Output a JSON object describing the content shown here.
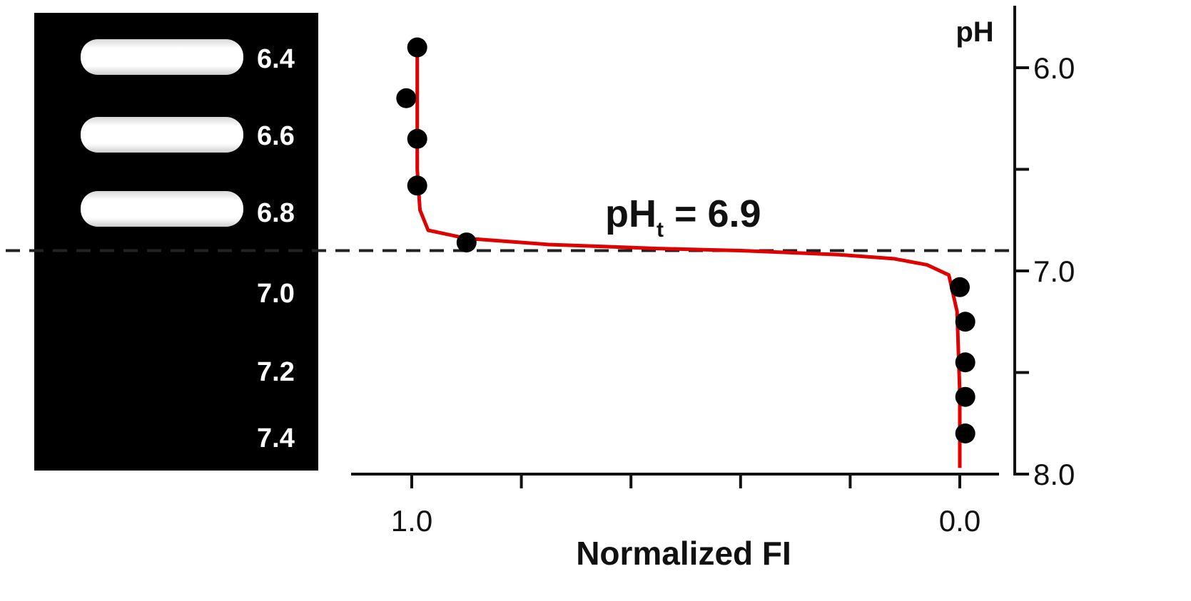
{
  "chart_data": {
    "type": "scatter",
    "title": "",
    "xlabel": "Normalized FI",
    "ylabel": "pH",
    "xlim": [
      1.0,
      0.0
    ],
    "ylim": [
      5.8,
      8.0
    ],
    "x_ticks": [
      "1.0",
      "0.0"
    ],
    "y_ticks": [
      "6.0",
      "7.0",
      "8.0"
    ],
    "annotation": {
      "text_main": "pH",
      "text_sub": "t",
      "text_tail": " = 6.9",
      "value": 6.9
    },
    "threshold_line": {
      "y": 6.9,
      "style": "dashed"
    },
    "points": {
      "y": [
        5.9,
        6.15,
        6.35,
        6.58,
        6.86,
        7.08,
        7.25,
        7.45,
        7.62,
        7.8
      ],
      "x": [
        0.99,
        1.01,
        0.99,
        0.99,
        0.9,
        0.0,
        -0.01,
        -0.01,
        -0.01,
        -0.01
      ]
    },
    "fit_line": {
      "y": [
        5.86,
        6.2,
        6.5,
        6.7,
        6.8,
        6.84,
        6.87,
        6.89,
        6.9,
        6.92,
        6.94,
        6.97,
        7.02,
        7.2,
        7.6,
        7.97
      ],
      "x": [
        0.99,
        0.99,
        0.99,
        0.985,
        0.97,
        0.9,
        0.75,
        0.55,
        0.4,
        0.22,
        0.12,
        0.06,
        0.02,
        0.005,
        0.0,
        0.0
      ]
    },
    "colors": {
      "points": "#000000",
      "fit": "#e00000",
      "dashed": "#222222"
    },
    "grid": false,
    "legend": "none"
  },
  "gel_image": {
    "background": "#000000",
    "lanes": [
      {
        "label": "6.4",
        "fluorescent": true
      },
      {
        "label": "6.6",
        "fluorescent": true
      },
      {
        "label": "6.8",
        "fluorescent": true
      },
      {
        "label": "7.0",
        "fluorescent": false
      },
      {
        "label": "7.2",
        "fluorescent": false
      },
      {
        "label": "7.4",
        "fluorescent": false
      }
    ]
  }
}
